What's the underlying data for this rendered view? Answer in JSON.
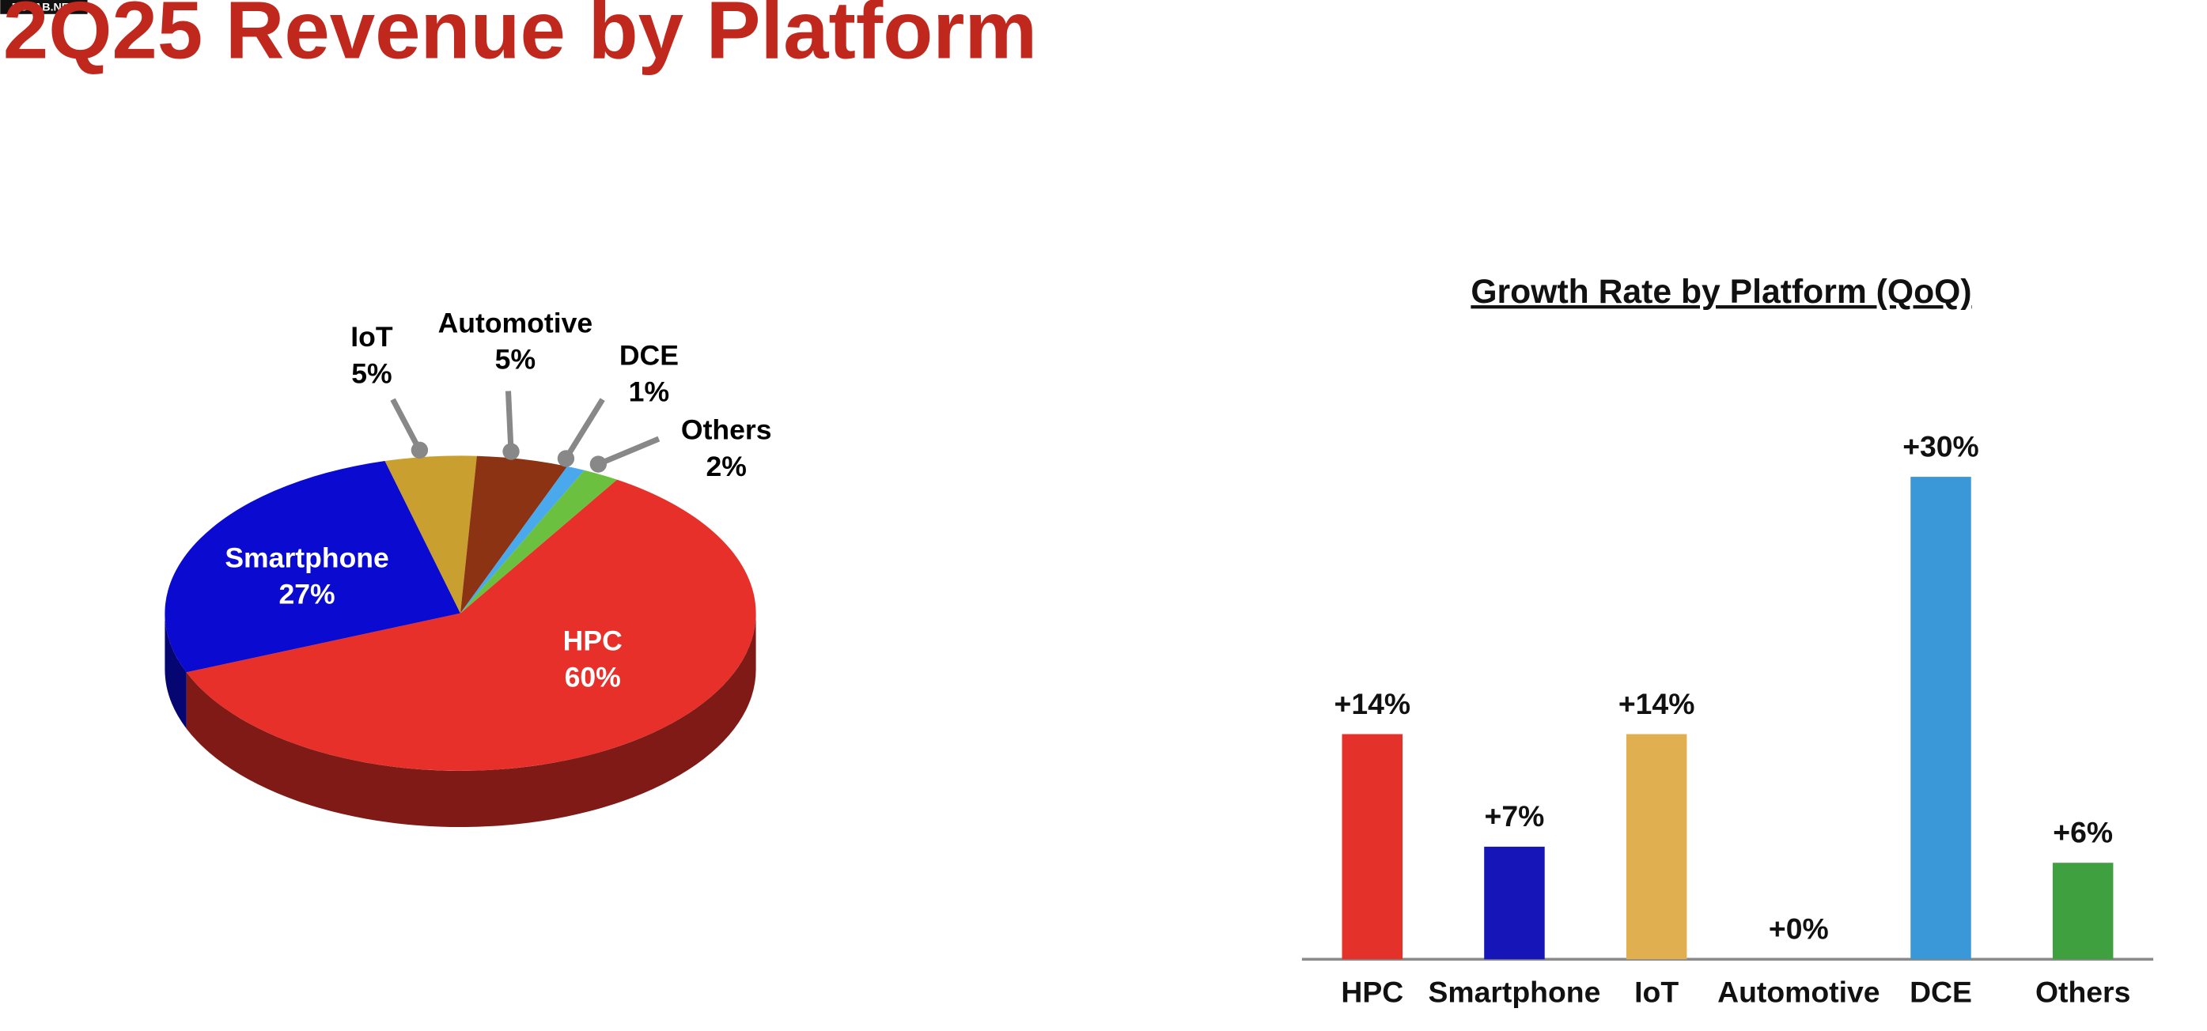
{
  "page": {
    "title": "2Q25 Revenue by Platform",
    "watermark": "RUTAB.NET"
  },
  "chart_data": [
    {
      "type": "pie",
      "categories": [
        "HPC",
        "Smartphone",
        "IoT",
        "Automotive",
        "DCE",
        "Others"
      ],
      "values": [
        60,
        27,
        5,
        5,
        1,
        2
      ],
      "value_labels": [
        "60%",
        "27%",
        "5%",
        "5%",
        "1%",
        "2%"
      ],
      "colors": [
        "#e8302a",
        "#0a0ad0",
        "#c9a030",
        "#8b3312",
        "#4aa8ec",
        "#6cc040"
      ]
    },
    {
      "type": "bar",
      "title": "Growth Rate by Platform (QoQ)",
      "categories": [
        "HPC",
        "Smartphone",
        "IoT",
        "Automotive",
        "DCE",
        "Others"
      ],
      "values": [
        14,
        7,
        14,
        0,
        30,
        6
      ],
      "value_labels": [
        "+14%",
        "+7%",
        "+14%",
        "+0%",
        "+30%",
        "+6%"
      ],
      "colors": [
        "#e4322a",
        "#1515b8",
        "#e0b050",
        "#8b3312",
        "#3a98d8",
        "#3fa040"
      ]
    }
  ]
}
